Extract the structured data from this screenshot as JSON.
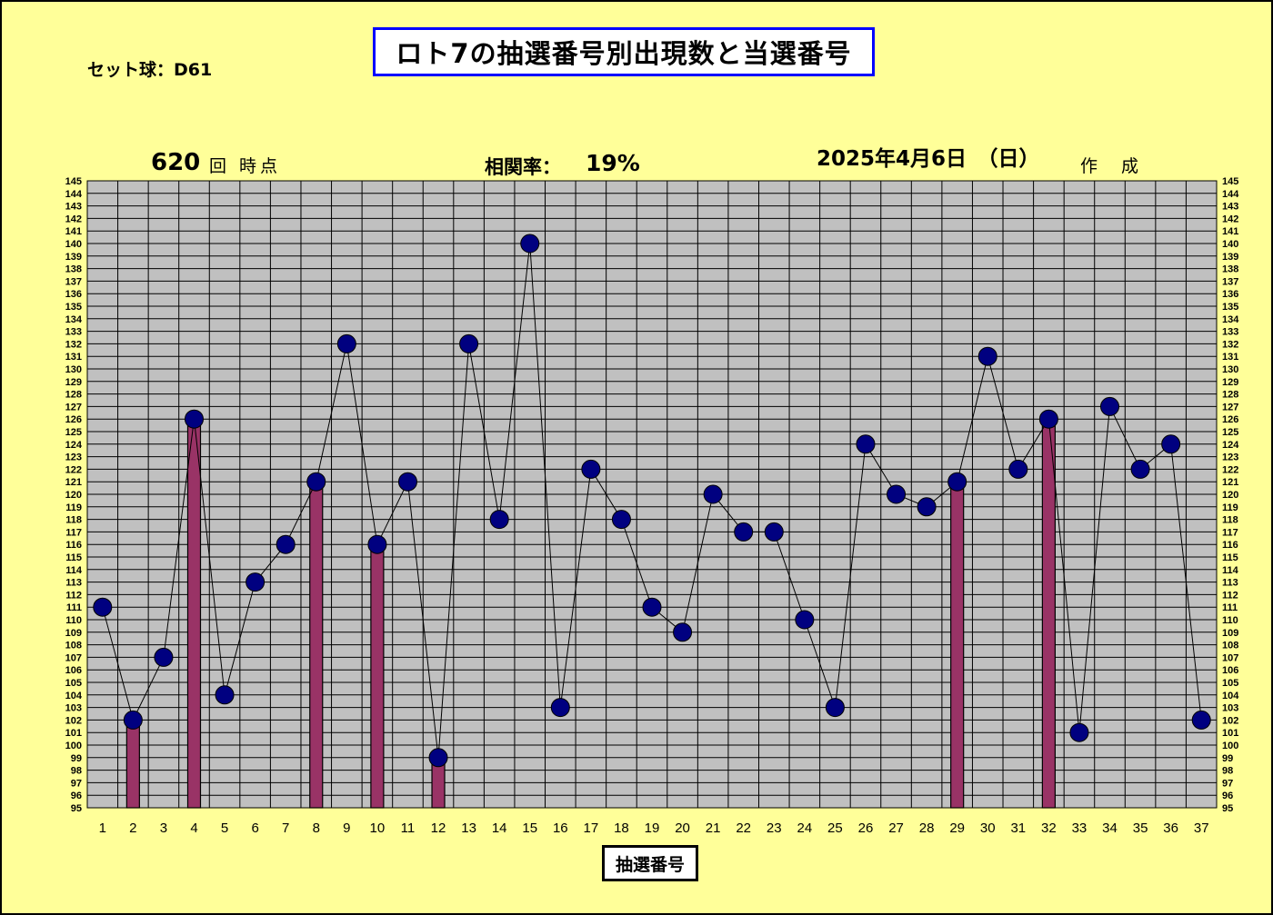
{
  "title": "ロト7の抽選番号別出現数と当選番号",
  "set_ball": "セット球：D61",
  "draw_count": "620",
  "draw_suffix": "回 時点",
  "correlation_label": "相関率：",
  "correlation_value": "19%",
  "date": "2025年4月6日　（日）",
  "made_label": "作 成",
  "colors": {
    "background": "#ffff99",
    "plot_area": "#c0c0c0",
    "bar": "#993366",
    "marker": "#000080",
    "title_border": "#0000ff"
  },
  "chart_data": {
    "type": "bar+line",
    "xlabel": "抽選番号",
    "ylim": [
      95,
      145
    ],
    "grid": true,
    "categories": [
      "1",
      "2",
      "3",
      "4",
      "5",
      "6",
      "7",
      "8",
      "9",
      "10",
      "11",
      "12",
      "13",
      "14",
      "15",
      "16",
      "17",
      "18",
      "19",
      "20",
      "21",
      "22",
      "23",
      "24",
      "25",
      "26",
      "27",
      "28",
      "29",
      "30",
      "31",
      "32",
      "33",
      "34",
      "35",
      "36",
      "37"
    ],
    "series": [
      {
        "values": [
          111,
          102,
          107,
          126,
          104,
          113,
          116,
          121,
          132,
          116,
          121,
          99,
          132,
          118,
          140,
          103,
          122,
          118,
          111,
          109,
          120,
          117,
          117,
          110,
          103,
          124,
          120,
          119,
          121,
          131,
          122,
          126,
          101,
          127,
          122,
          124,
          102
        ]
      }
    ],
    "winning_numbers": [
      2,
      4,
      8,
      10,
      12,
      29,
      32
    ]
  }
}
